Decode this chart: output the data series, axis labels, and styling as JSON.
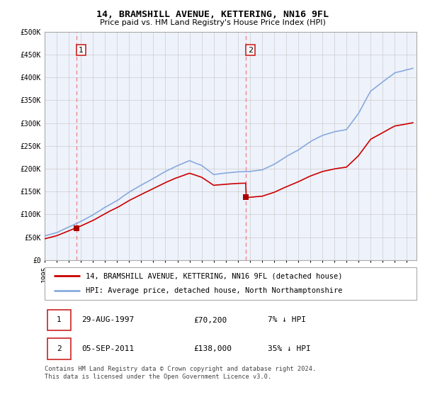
{
  "title": "14, BRAMSHILL AVENUE, KETTERING, NN16 9FL",
  "subtitle": "Price paid vs. HM Land Registry's House Price Index (HPI)",
  "ylim": [
    0,
    500000
  ],
  "xlim_start": 1995.0,
  "xlim_end": 2025.8,
  "yticks": [
    0,
    50000,
    100000,
    150000,
    200000,
    250000,
    300000,
    350000,
    400000,
    450000,
    500000
  ],
  "ytick_labels": [
    "£0",
    "£50K",
    "£100K",
    "£150K",
    "£200K",
    "£250K",
    "£300K",
    "£350K",
    "£400K",
    "£450K",
    "£500K"
  ],
  "grid_color": "#cccccc",
  "bg_color": "#eef2fb",
  "sale1_x": 1997.66,
  "sale1_y": 70200,
  "sale2_x": 2011.68,
  "sale2_y": 138000,
  "red_line_color": "#cc0000",
  "blue_line_color": "#88aadd",
  "marker_color": "#aa0000",
  "dashed_line_color": "#ee8888",
  "legend_label_red": "14, BRAMSHILL AVENUE, KETTERING, NN16 9FL (detached house)",
  "legend_label_blue": "HPI: Average price, detached house, North Northamptonshire",
  "footnote": "Contains HM Land Registry data © Crown copyright and database right 2024.\nThis data is licensed under the Open Government Licence v3.0.",
  "title_fontsize": 9.5,
  "subtitle_fontsize": 8,
  "tick_fontsize": 7,
  "legend_fontsize": 7.5,
  "table_fontsize": 8
}
